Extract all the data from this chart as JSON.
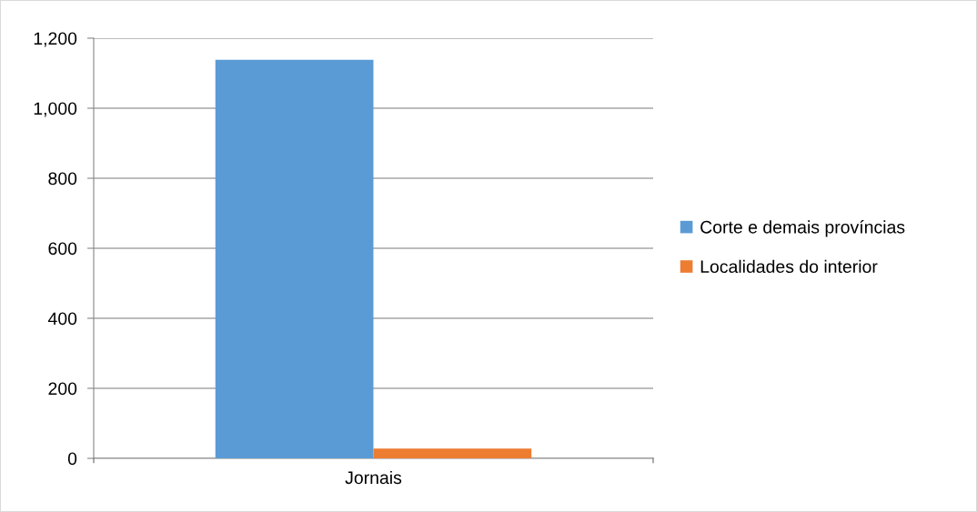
{
  "chart_data": {
    "type": "bar",
    "categories": [
      "Jornais"
    ],
    "series": [
      {
        "name": "Corte e demais províncias",
        "color": "#5b9bd5",
        "values": [
          1138
        ]
      },
      {
        "name": "Localidades do interior",
        "color": "#ed7d31",
        "values": [
          28
        ]
      }
    ],
    "ylim": [
      0,
      1200
    ],
    "yticks": [
      0,
      200,
      400,
      600,
      800,
      {
        "value": 1000,
        "label": "1,000"
      },
      {
        "value": 1200,
        "label": "1,200"
      }
    ],
    "grid": "y",
    "legend": "right"
  }
}
